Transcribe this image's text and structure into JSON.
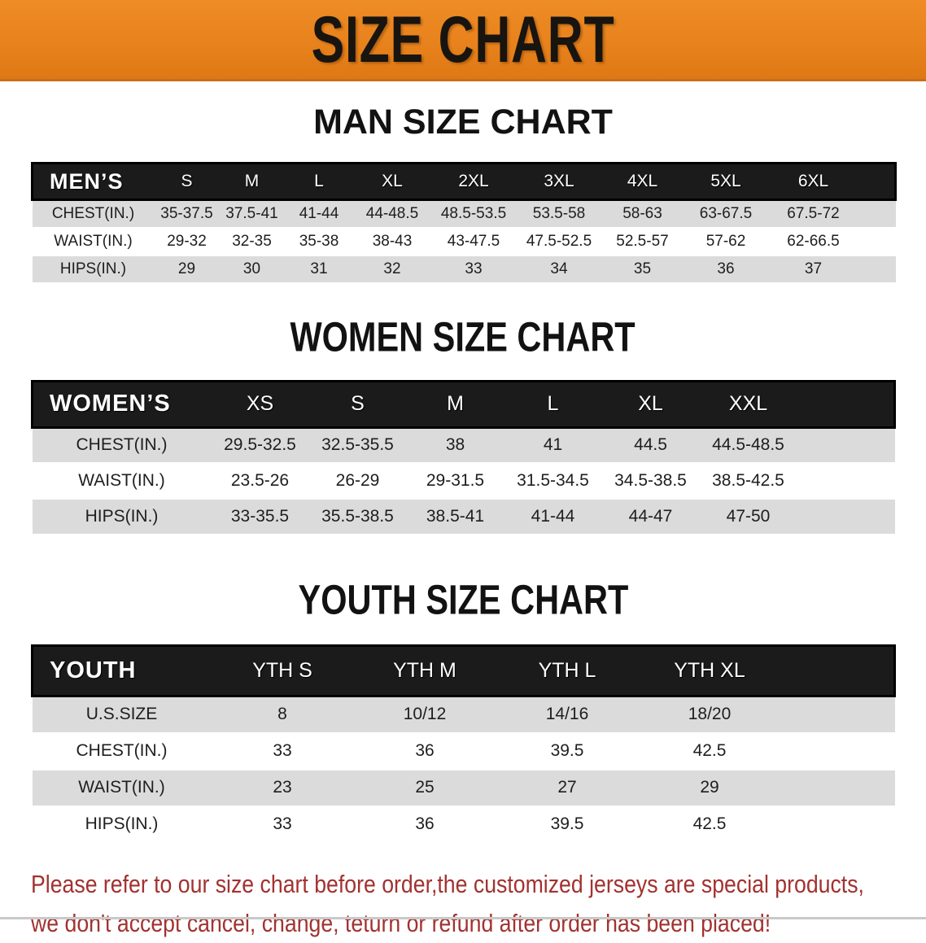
{
  "banner": {
    "title": "SIZE CHART",
    "bg_color": "#E8821C",
    "text_color": "#181410"
  },
  "colors": {
    "band_bg": "#1b1b1b",
    "band_text": "#ffffff",
    "row_stripe": "#DBDBDB",
    "disclaimer_text": "#A23230"
  },
  "chart_data": [
    {
      "type": "table",
      "heading": "MAN SIZE CHART",
      "corner_label": "MEN’S",
      "columns": [
        "S",
        "M",
        "L",
        "XL",
        "2XL",
        "3XL",
        "4XL",
        "5XL",
        "6XL"
      ],
      "rows": [
        {
          "label": "CHEST(IN.)",
          "values": [
            "35-37.5",
            "37.5-41",
            "41-44",
            "44-48.5",
            "48.5-53.5",
            "53.5-58",
            "58-63",
            "63-67.5",
            "67.5-72"
          ]
        },
        {
          "label": "WAIST(IN.)",
          "values": [
            "29-32",
            "32-35",
            "35-38",
            "38-43",
            "43-47.5",
            "47.5-52.5",
            "52.5-57",
            "57-62",
            "62-66.5"
          ]
        },
        {
          "label": "HIPS(IN.)",
          "values": [
            "29",
            "30",
            "31",
            "32",
            "33",
            "34",
            "35",
            "36",
            "37"
          ]
        }
      ]
    },
    {
      "type": "table",
      "heading": "WOMEN SIZE CHART",
      "corner_label": "WOMEN’S",
      "columns": [
        "XS",
        "S",
        "M",
        "L",
        "XL",
        "XXL"
      ],
      "rows": [
        {
          "label": "CHEST(IN.)",
          "values": [
            "29.5-32.5",
            "32.5-35.5",
            "38",
            "41",
            "44.5",
            "44.5-48.5"
          ]
        },
        {
          "label": "WAIST(IN.)",
          "values": [
            "23.5-26",
            "26-29",
            "29-31.5",
            "31.5-34.5",
            "34.5-38.5",
            "38.5-42.5"
          ]
        },
        {
          "label": "HIPS(IN.)",
          "values": [
            "33-35.5",
            "35.5-38.5",
            "38.5-41",
            "41-44",
            "44-47",
            "47-50"
          ]
        }
      ]
    },
    {
      "type": "table",
      "heading": "YOUTH SIZE CHART",
      "corner_label": "YOUTH",
      "columns": [
        "YTH S",
        "YTH M",
        "YTH L",
        "YTH XL"
      ],
      "rows": [
        {
          "label": "U.S.SIZE",
          "values": [
            "8",
            "10/12",
            "14/16",
            "18/20"
          ]
        },
        {
          "label": "CHEST(IN.)",
          "values": [
            "33",
            "36",
            "39.5",
            "42.5"
          ]
        },
        {
          "label": "WAIST(IN.)",
          "values": [
            "23",
            "25",
            "27",
            "29"
          ]
        },
        {
          "label": "HIPS(IN.)",
          "values": [
            "33",
            "36",
            "39.5",
            "42.5"
          ]
        }
      ]
    }
  ],
  "disclaimer": {
    "line1": "Please refer to our size chart before order,the customized jerseys are special products,",
    "line2": "we don't accept cancel, change, teturn or refund after order has been placed!"
  }
}
